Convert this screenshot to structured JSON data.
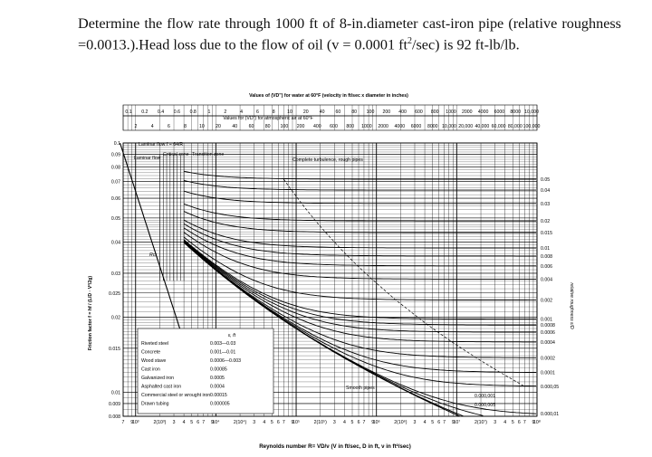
{
  "question": {
    "part1": "Determine the flow rate through 1000 ft of 8-in.diameter cast-iron pipe (relative roughness =0.0013.).Head loss due to the flow of oil (v = 0.0001 ft",
    "sup": "2",
    "part2": "/sec) is 92 ft-lb/lb."
  },
  "chart_data": {
    "type": "line",
    "title": "Values of (VD\") for water at 60°F (velocity in ft/sec x diameter in inches)",
    "subtitle": "Values for (VD\") for atmospheric air at 60°F",
    "xlabel": "Reynolds number R= VD/ν (V in ft/sec, D in ft, ν in ft²/sec)",
    "ylabel": "Friction factor f = hf / (L/D · V²/2g)",
    "y2label": "relative roughness ε/D",
    "xscale": "log",
    "yscale": "log",
    "xlim": [
      700,
      100000000
    ],
    "ylim": [
      0.008,
      0.1
    ],
    "grid": true,
    "x_bottom_ticks": [
      "7",
      "9",
      "10³",
      "2(10³)",
      "3",
      "4",
      "5",
      "6",
      "7",
      "9",
      "10⁴",
      "2(10⁴)",
      "3",
      "4",
      "5",
      "6",
      "7",
      "9",
      "10⁵",
      "2(10⁵)",
      "3",
      "4",
      "5",
      "6",
      "7",
      "9",
      "10⁶",
      "2(10⁶)",
      "3",
      "4",
      "5",
      "6",
      "7",
      "9",
      "10⁷",
      "2(10⁷)",
      "3",
      "4",
      "5",
      "6",
      "7",
      "9",
      "10⁸"
    ],
    "top_scale_water": [
      "0.1",
      "0.2",
      "0.4",
      "0.6",
      "0.8",
      "1",
      "2",
      "4",
      "6",
      "8",
      "10",
      "20",
      "40",
      "60",
      "80",
      "100",
      "200",
      "400",
      "600",
      "800",
      "1000",
      "2000",
      "4000",
      "6000",
      "8000",
      "10,000"
    ],
    "top_scale_air": [
      "2",
      "4",
      "6",
      "8",
      "10",
      "20",
      "40",
      "60",
      "80",
      "100",
      "200",
      "400",
      "600",
      "800",
      "1000",
      "2000",
      "4000",
      "6000",
      "8000",
      "10,000",
      "20,000",
      "40,000",
      "60,000",
      "80,000",
      "100,000"
    ],
    "y_ticks": [
      "0.1",
      "0.09",
      "0.08",
      "0.07",
      "0.06",
      "0.05",
      "0.04",
      "0.03",
      "0.025",
      "0.02",
      "0.015",
      "0.01",
      "0.009",
      "0.008"
    ],
    "y_tick_values": [
      0.1,
      0.09,
      0.08,
      0.07,
      0.06,
      0.05,
      0.04,
      0.03,
      0.025,
      0.02,
      0.015,
      0.01,
      0.009,
      0.008
    ],
    "rr_ticks": [
      "0.05",
      "0.04",
      "0.03",
      "0.02",
      "0.015",
      "0.01",
      "0.008",
      "0.006",
      "0.004",
      "0.002",
      "0.001",
      "0.0008",
      "0.0006",
      "0.0004",
      "0.0002",
      "0.0001",
      "0.000,05",
      "0.000,01"
    ],
    "rr_values": [
      0.05,
      0.04,
      0.03,
      0.02,
      0.015,
      0.01,
      0.008,
      0.006,
      0.004,
      0.002,
      0.001,
      0.0008,
      0.0006,
      0.0004,
      0.0002,
      0.0001,
      5e-05,
      1e-05
    ],
    "annotations": {
      "laminar_flow": "Laminar flow f = 64/R",
      "laminar_flow_short": "Laminar flow",
      "critical_zone": "Critical zone",
      "transition_zone": "Transition zone",
      "complete_turbulence": "Complete turbulence, rough pipes",
      "smooth_pipes": "Smooth pipes",
      "rcr": "Rcr",
      "rr_small_1": "0.000,001",
      "rr_small_2": "0.000,005"
    },
    "roughness_table": {
      "header": "ε, ft",
      "rows": [
        {
          "material": "Riveted steel",
          "value": "0.003—0.03"
        },
        {
          "material": "Concrete",
          "value": "0.001—0.01"
        },
        {
          "material": "Wood stave",
          "value": "0.0006—0.003"
        },
        {
          "material": "Cast iron",
          "value": "0.00085"
        },
        {
          "material": "Galvanized iron",
          "value": "0.0005"
        },
        {
          "material": "Asphalted cast iron",
          "value": "0.0004"
        },
        {
          "material": "Commercial steel or wrought iron",
          "value": "0.00015"
        },
        {
          "material": "Drawn tubing",
          "value": "0.000005"
        }
      ]
    }
  }
}
